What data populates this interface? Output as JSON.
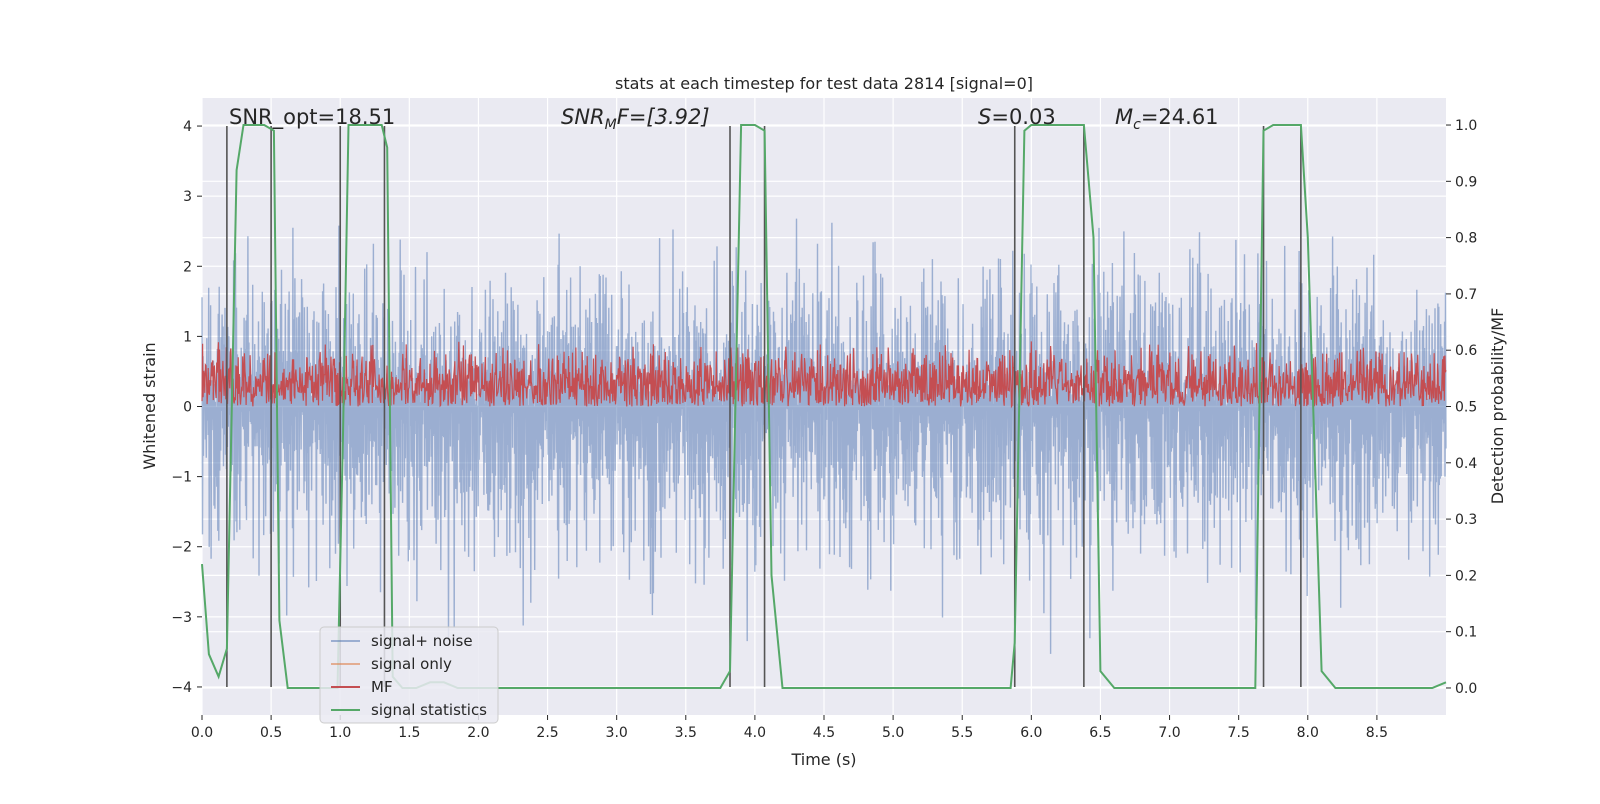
{
  "chart_data": {
    "type": "line",
    "title": "stats at each timestep for test data 2814 [signal=0]",
    "xlabel": "Time (s)",
    "ylabel_left": "Whitened strain",
    "ylabel_right": "Detection probability/MF",
    "xlim": [
      0.0,
      9.0
    ],
    "ylim_left": [
      -4.4,
      4.4
    ],
    "ylim_right": [
      -0.048,
      1.048
    ],
    "xticks": [
      "0.0",
      "0.5",
      "1.0",
      "1.5",
      "2.0",
      "2.5",
      "3.0",
      "3.5",
      "4.0",
      "4.5",
      "5.0",
      "5.5",
      "6.0",
      "6.5",
      "7.0",
      "7.5",
      "8.0",
      "8.5"
    ],
    "yticks_left": [
      "−4",
      "−3",
      "−2",
      "−1",
      "0",
      "1",
      "2",
      "3",
      "4"
    ],
    "yticks_right": [
      "0.0",
      "0.1",
      "0.2",
      "0.3",
      "0.4",
      "0.5",
      "0.6",
      "0.7",
      "0.8",
      "0.9",
      "1.0"
    ],
    "grid": true,
    "legend_position": "lower-left",
    "annotations": {
      "snr_opt": "SNR_opt=18.51",
      "snr_mf_name": "SNR",
      "snr_mf_sub": "M",
      "snr_mf_tail": "F=[3.92]",
      "s_name": "S",
      "s_val": "=0.03",
      "mc_name": "M",
      "mc_sub": "c",
      "mc_val": "=24.61"
    },
    "series": [
      {
        "name": "signal+ noise",
        "color": "#4c72b0",
        "axis": "left",
        "amplitude_range": [
          -4.0,
          4.0
        ]
      },
      {
        "name": "signal only",
        "color": "#dd8452",
        "axis": "left",
        "values": []
      },
      {
        "name": "MF",
        "color": "#c44e52",
        "axis": "right",
        "range": [
          0.5,
          0.62
        ]
      },
      {
        "name": "signal statistics",
        "color": "#55a868",
        "axis": "right",
        "x": [
          0.0,
          0.05,
          0.12,
          0.18,
          0.25,
          0.3,
          0.35,
          0.45,
          0.52,
          0.56,
          0.62,
          0.7,
          0.8,
          0.9,
          0.98,
          1.02,
          1.06,
          1.1,
          1.2,
          1.3,
          1.34,
          1.38,
          1.45,
          1.55,
          1.65,
          1.75,
          1.85,
          1.95,
          2.05,
          2.5,
          3.0,
          3.5,
          3.75,
          3.82,
          3.9,
          4.0,
          4.07,
          4.12,
          4.2,
          4.5,
          5.0,
          5.5,
          5.75,
          5.85,
          5.88,
          5.95,
          6.0,
          6.1,
          6.3,
          6.38,
          6.45,
          6.5,
          6.6,
          7.0,
          7.5,
          7.62,
          7.68,
          7.75,
          7.85,
          7.95,
          8.0,
          8.1,
          8.2,
          8.5,
          8.8,
          8.9,
          9.0
        ],
        "y": [
          0.22,
          0.06,
          0.02,
          0.07,
          0.92,
          1.0,
          1.0,
          1.0,
          0.99,
          0.12,
          0.0,
          0.0,
          0.0,
          0.0,
          0.0,
          0.45,
          1.0,
          1.0,
          1.0,
          1.0,
          0.96,
          0.02,
          0.0,
          0.0,
          0.01,
          0.01,
          0.0,
          0.0,
          0.0,
          0.0,
          0.0,
          0.0,
          0.0,
          0.03,
          1.0,
          1.0,
          0.99,
          0.2,
          0.0,
          0.0,
          0.0,
          0.0,
          0.0,
          0.0,
          0.08,
          0.99,
          1.0,
          1.0,
          1.0,
          1.0,
          0.8,
          0.03,
          0.0,
          0.0,
          0.0,
          0.0,
          0.99,
          1.0,
          1.0,
          1.0,
          0.8,
          0.03,
          0.0,
          0.0,
          0.0,
          0.0,
          0.01
        ]
      },
      {
        "name": "detection boundaries",
        "color": "#555555",
        "axis": "left",
        "x": [
          0.18,
          0.5,
          1.0,
          1.32,
          3.82,
          4.07,
          5.88,
          6.38,
          7.68,
          7.95
        ]
      }
    ]
  },
  "legend": {
    "items": [
      {
        "label": "signal+ noise",
        "color": "#4c72b0"
      },
      {
        "label": "signal only",
        "color": "#dd8452"
      },
      {
        "label": "MF",
        "color": "#c44e52"
      },
      {
        "label": "signal statistics",
        "color": "#55a868"
      }
    ]
  },
  "colors": {
    "plot_bg": "#eaeaf2",
    "grid": "#ffffff",
    "text": "#262626"
  }
}
